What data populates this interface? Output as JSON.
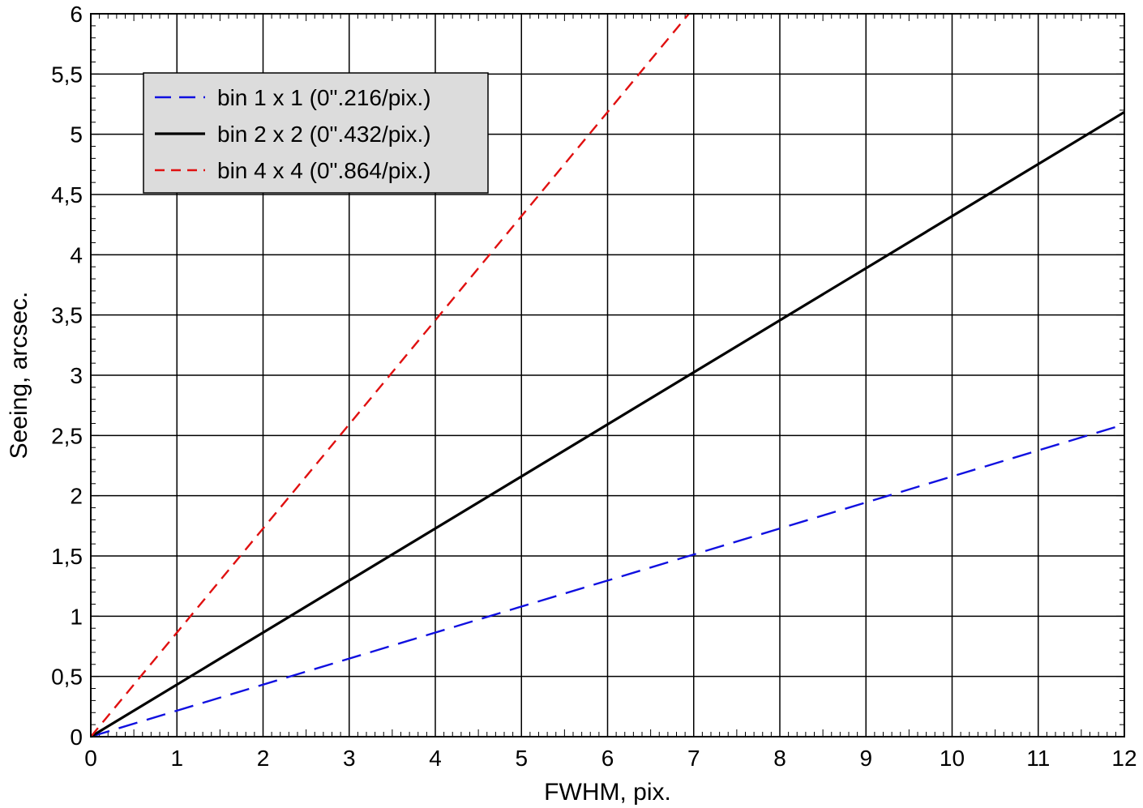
{
  "chart_data": {
    "type": "line",
    "title": "",
    "xlabel": "FWHM, pix.",
    "ylabel": "Seeing, arcsec.",
    "xlim": [
      0,
      12
    ],
    "ylim": [
      0,
      6
    ],
    "x_ticks": [
      0,
      1,
      2,
      3,
      4,
      5,
      6,
      7,
      8,
      9,
      10,
      11,
      12
    ],
    "x_tick_labels": [
      "0",
      "1",
      "2",
      "3",
      "4",
      "5",
      "6",
      "7",
      "8",
      "9",
      "10",
      "11",
      "12"
    ],
    "y_ticks": [
      0,
      0.5,
      1,
      1.5,
      2,
      2.5,
      3,
      3.5,
      4,
      4.5,
      5,
      5.5,
      6
    ],
    "y_tick_labels": [
      "0",
      "0,5",
      "1",
      "1,5",
      "2",
      "2,5",
      "3",
      "3,5",
      "4",
      "4,5",
      "5",
      "5,5",
      "6"
    ],
    "grid": true,
    "legend_position": "top-left",
    "series": [
      {
        "name": "bin 1 x 1 (0\".216/pix.)",
        "color": "#1010e0",
        "style": "long-dash",
        "x": [
          0,
          12
        ],
        "y": [
          0,
          2.592
        ]
      },
      {
        "name": "bin 2 x 2 (0\".432/pix.)",
        "color": "#000000",
        "style": "solid",
        "x": [
          0,
          12
        ],
        "y": [
          0,
          5.184
        ]
      },
      {
        "name": "bin 4 x 4 (0\".864/pix.)",
        "color": "#e01010",
        "style": "short-dash",
        "x": [
          0,
          6.944
        ],
        "y": [
          0,
          6
        ]
      }
    ]
  }
}
